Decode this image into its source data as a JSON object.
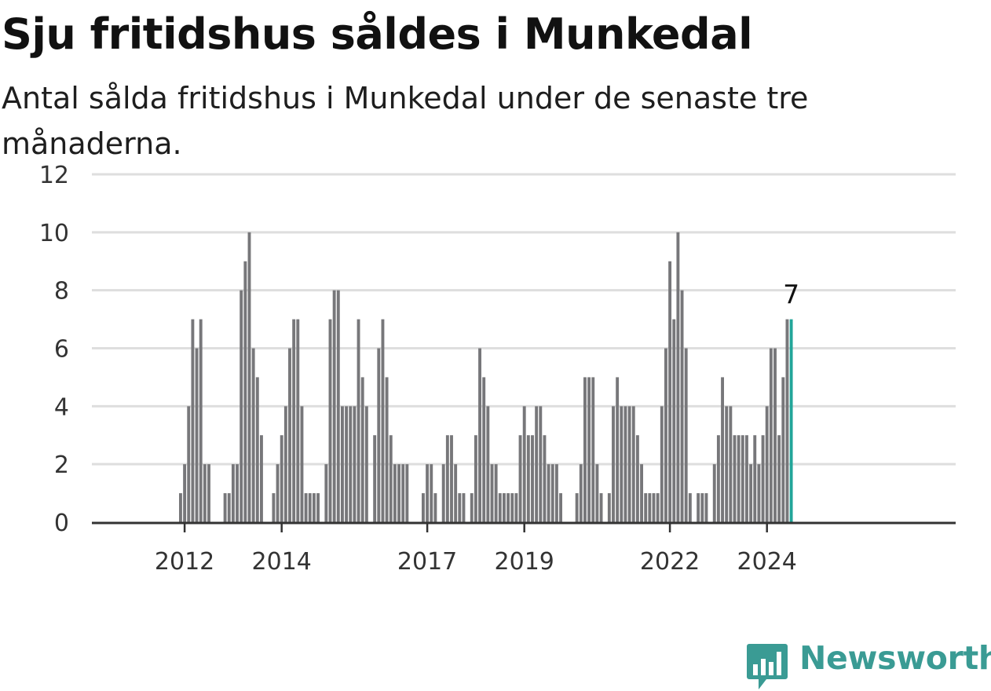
{
  "header": {
    "title": "Sju fritidshus såldes i Munkedal",
    "subtitle": "Antal sålda fritidshus i Munkedal under de senaste tre månaderna."
  },
  "brand": {
    "name": "Newsworthy",
    "color": "#3a9b94"
  },
  "colors": {
    "bar": "#77777a",
    "highlight": "#22a599",
    "grid": "#dedede",
    "axis": "#333333"
  },
  "chart_data": {
    "type": "bar",
    "title": "Sju fritidshus såldes i Munkedal",
    "subtitle": "Antal sålda fritidshus i Munkedal under de senaste tre månaderna.",
    "xlabel": "",
    "ylabel": "",
    "ylim": [
      0,
      12
    ],
    "yticks": [
      0,
      2,
      4,
      6,
      8,
      10,
      12
    ],
    "xtick_labels": [
      "2012",
      "2014",
      "2017",
      "2019",
      "2022",
      "2024"
    ],
    "xtick_positions": [
      "2012-03",
      "2014-03",
      "2017-03",
      "2019-03",
      "2022-03",
      "2024-03"
    ],
    "grid": true,
    "legend": "none",
    "start": "2011-01",
    "end": "2024-09",
    "values": [
      0,
      0,
      0,
      0,
      0,
      0,
      0,
      0,
      0,
      0,
      0,
      0,
      0,
      1,
      2,
      4,
      7,
      6,
      7,
      2,
      2,
      0,
      0,
      0,
      1,
      1,
      2,
      2,
      8,
      9,
      10,
      6,
      5,
      3,
      0,
      0,
      1,
      2,
      3,
      4,
      6,
      7,
      7,
      4,
      1,
      1,
      1,
      1,
      0,
      2,
      7,
      8,
      8,
      4,
      4,
      4,
      4,
      7,
      5,
      4,
      0,
      3,
      6,
      7,
      5,
      3,
      2,
      2,
      2,
      2,
      0,
      0,
      0,
      1,
      2,
      2,
      1,
      0,
      2,
      3,
      3,
      2,
      1,
      1,
      0,
      1,
      3,
      6,
      5,
      4,
      2,
      2,
      1,
      1,
      1,
      1,
      1,
      3,
      4,
      3,
      3,
      4,
      4,
      3,
      2,
      2,
      2,
      1,
      0,
      0,
      0,
      1,
      2,
      5,
      5,
      5,
      2,
      1,
      0,
      1,
      4,
      5,
      4,
      4,
      4,
      4,
      3,
      2,
      1,
      1,
      1,
      1,
      4,
      6,
      9,
      7,
      10,
      8,
      6,
      1,
      0,
      1,
      1,
      1,
      0,
      2,
      3,
      5,
      4,
      4,
      3,
      3,
      3,
      3,
      2,
      3,
      2,
      3,
      4,
      6,
      6,
      3,
      5,
      7,
      7
    ],
    "highlight": {
      "index": "last",
      "label": "7"
    }
  }
}
